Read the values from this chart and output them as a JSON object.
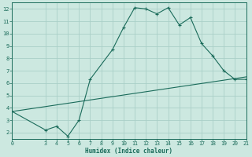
{
  "xlabel": "Humidex (Indice chaleur)",
  "bg_color": "#cce8e0",
  "grid_color": "#aacfc8",
  "line_color": "#1a6b5a",
  "xlim": [
    0,
    21
  ],
  "ylim": [
    1.5,
    12.5
  ],
  "xticks": [
    0,
    3,
    4,
    5,
    6,
    7,
    8,
    9,
    10,
    11,
    12,
    13,
    14,
    15,
    16,
    17,
    18,
    19,
    20,
    21
  ],
  "yticks": [
    2,
    3,
    4,
    5,
    6,
    7,
    8,
    9,
    10,
    11,
    12
  ],
  "curve1_x": [
    0,
    3,
    4,
    5,
    6,
    7,
    9,
    10,
    11,
    12,
    13,
    14,
    15,
    16,
    17,
    18,
    19,
    20,
    21
  ],
  "curve1_y": [
    3.7,
    2.2,
    2.5,
    1.7,
    3.0,
    6.3,
    8.7,
    10.5,
    12.1,
    12.0,
    11.6,
    12.1,
    10.7,
    11.3,
    9.2,
    8.2,
    7.0,
    6.3,
    6.3
  ],
  "curve2_x": [
    0,
    21
  ],
  "curve2_y": [
    3.7,
    6.5
  ]
}
